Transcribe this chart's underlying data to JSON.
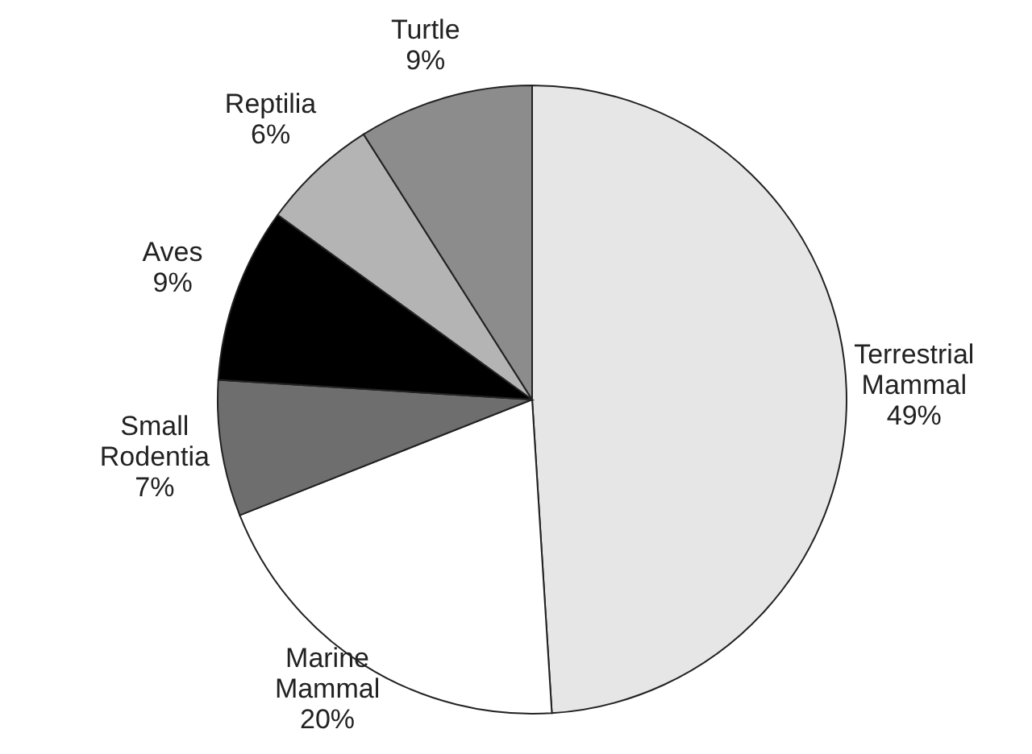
{
  "chart_data": {
    "type": "pie",
    "categories": [
      "Terrestrial Mammal",
      "Marine Mammal",
      "Small Rodentia",
      "Aves",
      "Reptilia",
      "Turtle"
    ],
    "values": [
      49,
      20,
      7,
      9,
      6,
      9
    ],
    "value_labels": [
      "49%",
      "20%",
      "7%",
      "9%",
      "6%",
      "9%"
    ],
    "colors": [
      "#e6e6e6",
      "#ffffff",
      "#6e6e6e",
      "#000000",
      "#b4b4b4",
      "#8c8c8c"
    ]
  }
}
